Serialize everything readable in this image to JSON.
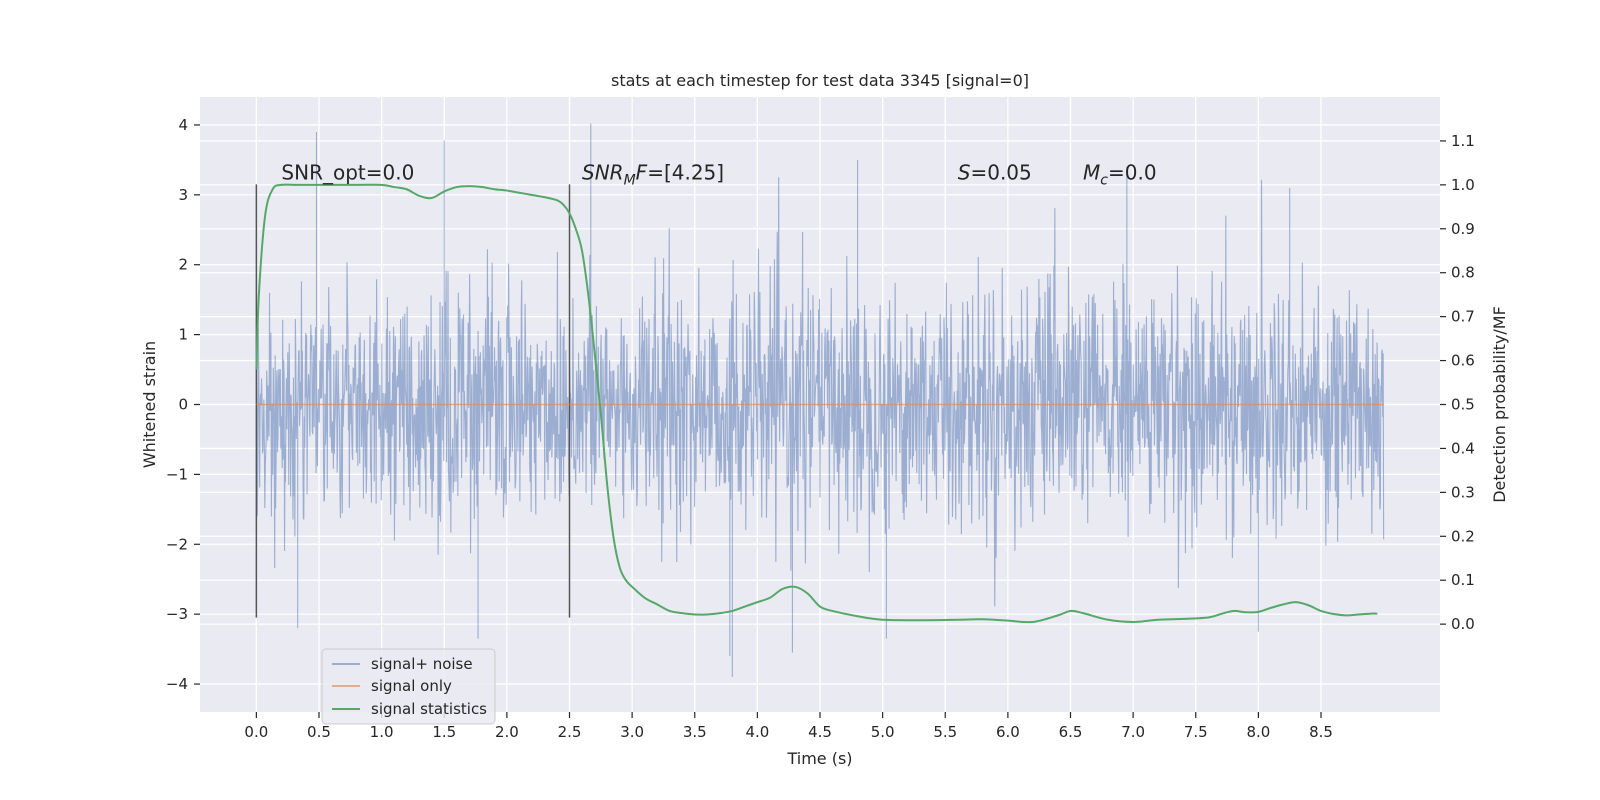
{
  "chart_data": {
    "type": "line",
    "title": "stats at each timestep for test data 3345 [signal=0]",
    "xlabel": "Time (s)",
    "ylabel_left": "Whitened strain",
    "ylabel_right": "Detection probability/MF",
    "xlim": [
      -0.45,
      9.45
    ],
    "ylim_left": [
      -4.4,
      4.4
    ],
    "ylim_right": [
      -0.2,
      1.2
    ],
    "grid": true,
    "x_ticks": [
      0.0,
      0.5,
      1.0,
      1.5,
      2.0,
      2.5,
      3.0,
      3.5,
      4.0,
      4.5,
      5.0,
      5.5,
      6.0,
      6.5,
      7.0,
      7.5,
      8.0,
      8.5
    ],
    "x_tick_labels": [
      "0.0",
      "0.5",
      "1.0",
      "1.5",
      "2.0",
      "2.5",
      "3.0",
      "3.5",
      "4.0",
      "4.5",
      "5.0",
      "5.5",
      "6.0",
      "6.5",
      "7.0",
      "7.5",
      "8.0",
      "8.5"
    ],
    "y_left_ticks": [
      -4,
      -3,
      -2,
      -1,
      0,
      1,
      2,
      3,
      4
    ],
    "y_left_tick_labels": [
      "−4",
      "−3",
      "−2",
      "−1",
      "0",
      "1",
      "2",
      "3",
      "4"
    ],
    "y_right_ticks": [
      0.0,
      0.1,
      0.2,
      0.3,
      0.4,
      0.5,
      0.6,
      0.7,
      0.8,
      0.9,
      1.0,
      1.1
    ],
    "y_right_tick_labels": [
      "0.0",
      "0.1",
      "0.2",
      "0.3",
      "0.4",
      "0.5",
      "0.6",
      "0.7",
      "0.8",
      "0.9",
      "1.0",
      "1.1"
    ],
    "vertical_lines": [
      {
        "x": 0.0,
        "ymin": -3.05,
        "ymax": 3.15
      },
      {
        "x": 2.5,
        "ymin": -3.05,
        "ymax": 3.15
      }
    ],
    "annotations": {
      "snr_opt": "SNR_opt=0.0",
      "snr_mf_main": "SNR",
      "snr_mf_sub": "M",
      "snr_mf_tail": "F",
      "snr_mf_value": "=[4.25]",
      "s_sym": "S",
      "s_value": "=0.05",
      "mc_sym": "M",
      "mc_sub": "c",
      "mc_value": "=0.0"
    },
    "series": [
      {
        "name": "signal+ noise",
        "color": "#4c72b0",
        "axis": "left",
        "style": "noise",
        "x_range": [
          0.0,
          9.0
        ],
        "envelope_sigma": 0.85,
        "peaks": [
          [
            0.48,
            3.9
          ],
          [
            1.5,
            3.78
          ],
          [
            2.67,
            4.02
          ],
          [
            4.8,
            3.5
          ],
          [
            6.95,
            3.4
          ],
          [
            8.25,
            3.1
          ],
          [
            3.78,
            -3.6
          ],
          [
            3.8,
            -3.9
          ],
          [
            4.28,
            -3.55
          ],
          [
            1.77,
            -3.35
          ],
          [
            0.33,
            -3.2
          ],
          [
            5.03,
            -3.35
          ],
          [
            8.0,
            -3.25
          ]
        ]
      },
      {
        "name": "signal only",
        "color": "#dd8452",
        "axis": "left",
        "x": [
          0.0,
          9.0
        ],
        "y": [
          0.0,
          0.0
        ]
      },
      {
        "name": "signal statistics",
        "color": "#55a868",
        "axis": "right",
        "x": [
          0.0,
          0.02,
          0.07,
          0.13,
          0.2,
          0.3,
          0.5,
          0.8,
          1.0,
          1.1,
          1.2,
          1.3,
          1.4,
          1.5,
          1.6,
          1.7,
          1.8,
          1.9,
          2.0,
          2.1,
          2.2,
          2.3,
          2.4,
          2.45,
          2.5,
          2.55,
          2.6,
          2.65,
          2.7,
          2.75,
          2.8,
          2.85,
          2.9,
          2.95,
          3.0,
          3.1,
          3.2,
          3.3,
          3.4,
          3.5,
          3.6,
          3.7,
          3.8,
          3.9,
          4.0,
          4.1,
          4.2,
          4.3,
          4.4,
          4.5,
          4.6,
          4.8,
          5.0,
          5.3,
          5.6,
          5.8,
          6.0,
          6.2,
          6.4,
          6.5,
          6.6,
          6.8,
          7.0,
          7.2,
          7.4,
          7.6,
          7.7,
          7.8,
          7.9,
          8.0,
          8.1,
          8.2,
          8.3,
          8.4,
          8.5,
          8.6,
          8.7,
          8.8,
          8.9,
          8.95
        ],
        "y": [
          0.58,
          0.75,
          0.93,
          0.99,
          1.0,
          1.0,
          1.0,
          1.0,
          1.0,
          0.995,
          0.99,
          0.975,
          0.97,
          0.985,
          0.995,
          0.997,
          0.995,
          0.99,
          0.987,
          0.982,
          0.977,
          0.972,
          0.965,
          0.955,
          0.935,
          0.9,
          0.85,
          0.75,
          0.62,
          0.48,
          0.32,
          0.2,
          0.13,
          0.1,
          0.085,
          0.06,
          0.045,
          0.03,
          0.025,
          0.022,
          0.022,
          0.025,
          0.03,
          0.04,
          0.05,
          0.06,
          0.08,
          0.085,
          0.07,
          0.04,
          0.03,
          0.018,
          0.01,
          0.009,
          0.01,
          0.011,
          0.008,
          0.005,
          0.02,
          0.03,
          0.025,
          0.01,
          0.005,
          0.01,
          0.012,
          0.015,
          0.023,
          0.03,
          0.027,
          0.028,
          0.037,
          0.045,
          0.05,
          0.043,
          0.03,
          0.023,
          0.02,
          0.022,
          0.024,
          0.024
        ]
      }
    ],
    "legend": {
      "position": "lower-left",
      "entries": [
        "signal+ noise",
        "signal only",
        "signal statistics"
      ]
    }
  }
}
